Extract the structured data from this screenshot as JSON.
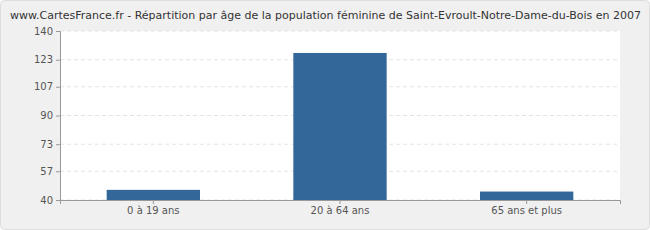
{
  "chart_data": {
    "type": "bar",
    "title": "www.CartesFrance.fr - Répartition par âge de la population féminine de Saint-Evroult-Notre-Dame-du-Bois en 2007",
    "categories": [
      "0 à 19 ans",
      "20 à 64 ans",
      "65 ans et plus"
    ],
    "values": [
      46,
      127,
      45
    ],
    "color": "#336699",
    "ylim": [
      40,
      140
    ],
    "yticks": [
      40,
      57,
      73,
      90,
      107,
      123,
      140
    ],
    "grid": true
  }
}
